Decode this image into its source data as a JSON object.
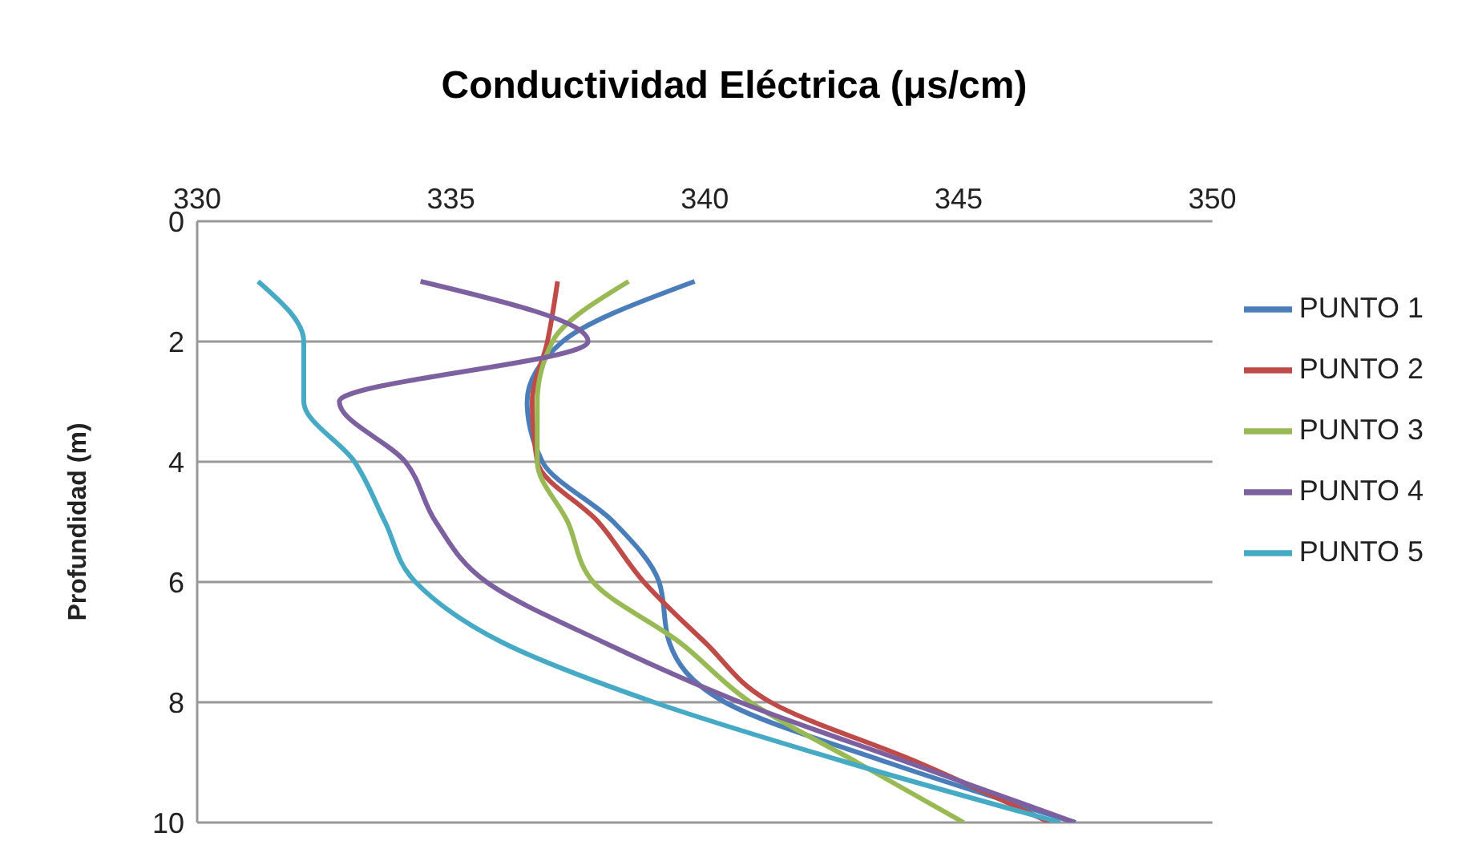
{
  "chart_data": {
    "type": "line",
    "title": "Conductividad Eléctrica (μs/cm)",
    "ylabel": "Profundidad  (m)",
    "xlim": [
      330,
      350
    ],
    "xticks": [
      330,
      335,
      340,
      345,
      350
    ],
    "ylim": [
      10,
      0
    ],
    "yticks": [
      0,
      2,
      4,
      6,
      8,
      10
    ],
    "grid": "y",
    "legend": "right",
    "marker": "none",
    "line_style": "solid",
    "series": [
      {
        "name": "PUNTO 1",
        "color": "#4a7ebb",
        "x": [
          339.8,
          337.2,
          336.5,
          336.8,
          338.2,
          339.1,
          339.3,
          340.4,
          343.6,
          347.3
        ],
        "values": [
          1,
          2,
          3,
          4,
          5,
          6,
          7,
          8,
          9,
          10
        ]
      },
      {
        "name": "PUNTO 2",
        "color": "#be4b48",
        "x": [
          337.1,
          336.9,
          336.6,
          336.7,
          337.9,
          338.8,
          340.0,
          341.3,
          344.2,
          346.8
        ],
        "values": [
          1,
          2,
          3,
          4,
          5,
          6,
          7,
          8,
          9,
          10
        ]
      },
      {
        "name": "PUNTO 3",
        "color": "#98b954",
        "x": [
          338.5,
          337.0,
          336.7,
          336.7,
          337.3,
          337.8,
          339.5,
          340.9,
          343.0,
          345.1
        ],
        "values": [
          1,
          2,
          3,
          4,
          5,
          6,
          7,
          8,
          9,
          10
        ]
      },
      {
        "name": "PUNTO 4",
        "color": "#7d60a0",
        "x": [
          334.4,
          337.7,
          332.8,
          334.1,
          334.7,
          335.7,
          338.0,
          340.7,
          344.0,
          347.3
        ],
        "values": [
          1,
          2,
          3,
          4,
          5,
          6,
          7,
          8,
          9,
          10
        ]
      },
      {
        "name": "PUNTO 5",
        "color": "#46aac5",
        "x": [
          331.2,
          332.1,
          332.1,
          333.1,
          333.7,
          334.3,
          336.0,
          339.0,
          342.8,
          347.0
        ],
        "values": [
          1,
          2,
          3,
          4,
          5,
          6,
          7,
          8,
          9,
          10
        ]
      }
    ]
  }
}
